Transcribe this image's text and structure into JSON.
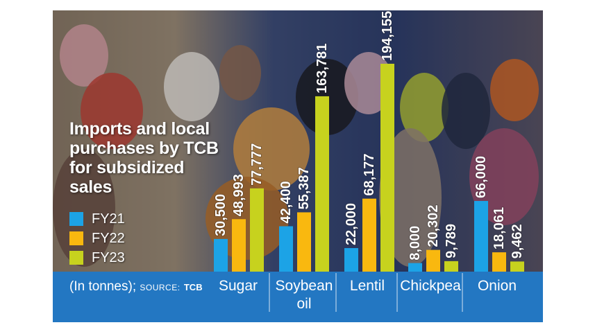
{
  "title": "Imports and local purchases by TCB for subsidized sales",
  "unit_note": {
    "prefix": "(In tonnes);",
    "source_label": "SOURCE:",
    "source_name": "TCB"
  },
  "legend": [
    {
      "name": "FY21",
      "color": "#1ca3e6"
    },
    {
      "name": "FY22",
      "color": "#f9b80f"
    },
    {
      "name": "FY23",
      "color": "#c7d21e"
    }
  ],
  "chart_data": {
    "type": "bar",
    "title": "Imports and local purchases by TCB for subsidized sales",
    "ylabel": "(In tonnes)",
    "categories": [
      "Sugar",
      "Soybean oil",
      "Lentil",
      "Chickpea",
      "Onion"
    ],
    "series": [
      {
        "name": "FY21",
        "values": [
          30500,
          42400,
          22000,
          8000,
          66000
        ],
        "labels": [
          "30,500",
          "42,400",
          "22,000",
          "8,000",
          "66,000"
        ]
      },
      {
        "name": "FY22",
        "values": [
          48993,
          55387,
          68177,
          20302,
          18061
        ],
        "labels": [
          "48,993",
          "55,387",
          "68,177",
          "20,302",
          "18,061"
        ]
      },
      {
        "name": "FY23",
        "values": [
          77777,
          163781,
          194155,
          9789,
          9462
        ],
        "labels": [
          "77,777",
          "163,781",
          "194,155",
          "9,789",
          "9,462"
        ]
      }
    ],
    "legend_position": "left"
  }
}
